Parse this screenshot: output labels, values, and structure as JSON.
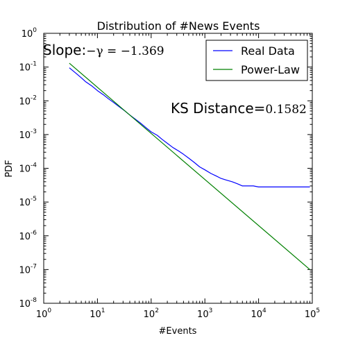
{
  "chart_data": {
    "type": "line",
    "title": "Distribution of #News Events",
    "xlabel": "#Events",
    "ylabel": "PDF",
    "xscale": "log",
    "yscale": "log",
    "xlim": [
      1,
      100000
    ],
    "ylim": [
      1e-08,
      1
    ],
    "x_ticks": [
      {
        "base": "10",
        "exp": "0"
      },
      {
        "base": "10",
        "exp": "1"
      },
      {
        "base": "10",
        "exp": "2"
      },
      {
        "base": "10",
        "exp": "3"
      },
      {
        "base": "10",
        "exp": "4"
      },
      {
        "base": "10",
        "exp": "5"
      }
    ],
    "y_ticks": [
      {
        "base": "10",
        "exp": "0"
      },
      {
        "base": "10",
        "exp": "-1"
      },
      {
        "base": "10",
        "exp": "-2"
      },
      {
        "base": "10",
        "exp": "-3"
      },
      {
        "base": "10",
        "exp": "-4"
      },
      {
        "base": "10",
        "exp": "-5"
      },
      {
        "base": "10",
        "exp": "-6"
      },
      {
        "base": "10",
        "exp": "-7"
      },
      {
        "base": "10",
        "exp": "-8"
      }
    ],
    "legend_position": "top-right",
    "series": [
      {
        "name": "Real Data",
        "color": "#0000ff",
        "x": [
          3,
          4,
          5,
          6,
          8,
          10,
          13,
          16,
          20,
          25,
          32,
          40,
          50,
          63,
          80,
          100,
          130,
          160,
          200,
          250,
          320,
          400,
          500,
          630,
          800,
          1000,
          1300,
          1600,
          2000,
          2500,
          3200,
          4000,
          5000,
          6300,
          8000,
          10000,
          20000,
          50000,
          90000
        ],
        "y": [
          0.095,
          0.065,
          0.048,
          0.037,
          0.027,
          0.02,
          0.015,
          0.0115,
          0.0089,
          0.0068,
          0.0051,
          0.0038,
          0.0029,
          0.0022,
          0.0016,
          0.0012,
          0.00095,
          0.00072,
          0.00055,
          0.00042,
          0.00033,
          0.00026,
          0.0002,
          0.00015,
          0.00011,
          9e-05,
          7e-05,
          6e-05,
          5e-05,
          4.5e-05,
          4e-05,
          3.5e-05,
          3e-05,
          3e-05,
          3e-05,
          2.8e-05,
          2.8e-05,
          2.8e-05,
          2.8e-05
        ]
      },
      {
        "name": "Power-Law",
        "color": "#008000",
        "x": [
          3,
          90000
        ],
        "y": [
          0.13,
          1e-07
        ]
      }
    ],
    "annotations": [
      {
        "prefix": "Slope:",
        "math": "−γ = −1.369"
      },
      {
        "prefix": "KS Distance=",
        "math": "0.1582"
      }
    ]
  }
}
